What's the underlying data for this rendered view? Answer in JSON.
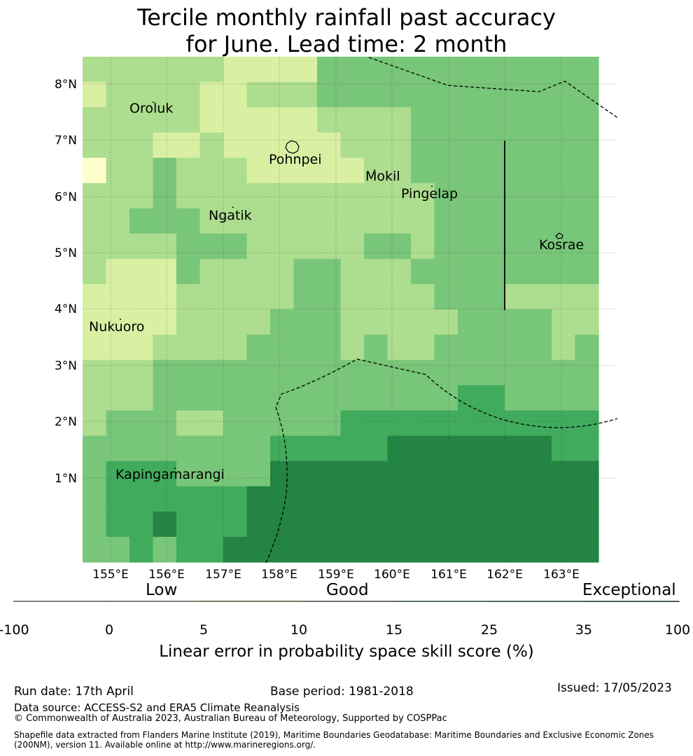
{
  "title": {
    "line1": "Tercile monthly rainfall past accuracy",
    "line2": "for June. Lead time: 2 month"
  },
  "map": {
    "lon_labels": [
      "155°E",
      "156°E",
      "157°E",
      "158°E",
      "159°E",
      "160°E",
      "161°E",
      "162°E",
      "163°E"
    ],
    "lat_labels": [
      "8°N",
      "7°N",
      "6°N",
      "5°N",
      "4°N",
      "3°N",
      "2°N",
      "1°N"
    ],
    "places": [
      "Oroluk",
      "Pohnpei",
      "Mokil",
      "Pingelap",
      "Ngatik",
      "Kosrae",
      "Nukuoro",
      "Kapingamarangi"
    ],
    "colors": [
      "#ffffff",
      "#ffffcc",
      "#d9f0a3",
      "#addd8e",
      "#78c679",
      "#41ab5d",
      "#238443"
    ],
    "grid_rows": [
      "3333332222444444444444",
      "2333322333444444444444",
      "3333322222333344444444",
      "3332232222233344444444",
      "1334333222223344444444",
      "3334333333333334444444",
      "3344433333333334444444",
      "3333444333334434444444",
      "3222433334433344444444",
      "2222333334433334443333",
      "2222333344433333444433",
      "2223333444434334444434",
      "3334444444444444444444",
      "3334444444444444554444",
      "3444334444455555555555",
      "4444444455555666666655",
      "4555444466666666666666",
      "4555555666666666666666",
      "4556555666666666666666",
      "4454556666666666666666"
    ]
  },
  "colorbar": {
    "category_labels": [
      "Low",
      "Good",
      "Exceptional"
    ],
    "tick_labels": [
      "-100",
      "0",
      "5",
      "10",
      "15",
      "25",
      "35",
      "100"
    ],
    "label": "Linear error in probability space skill score (%)"
  },
  "footer": {
    "run_date": "Run date: 17th April",
    "base_period": "Base period: 1981-2018",
    "issued": "Issued: 17/05/2023",
    "data_source": "Data source: ACCESS-S2 and ERA5 Climate Reanalysis",
    "copyright": "© Commonwealth of Australia 2023, Australian Bureau of Meteorology, Supported by COSPPac",
    "shapefile_line1": "Shapefile data extracted from Flanders Marine Institute (2019), Maritime Boundaries Geodatabase: Maritime Boundaries and Exclusive Economic Zones",
    "shapefile_line2": "(200NM), version 11. Available online at http://www.marineregions.org/."
  }
}
